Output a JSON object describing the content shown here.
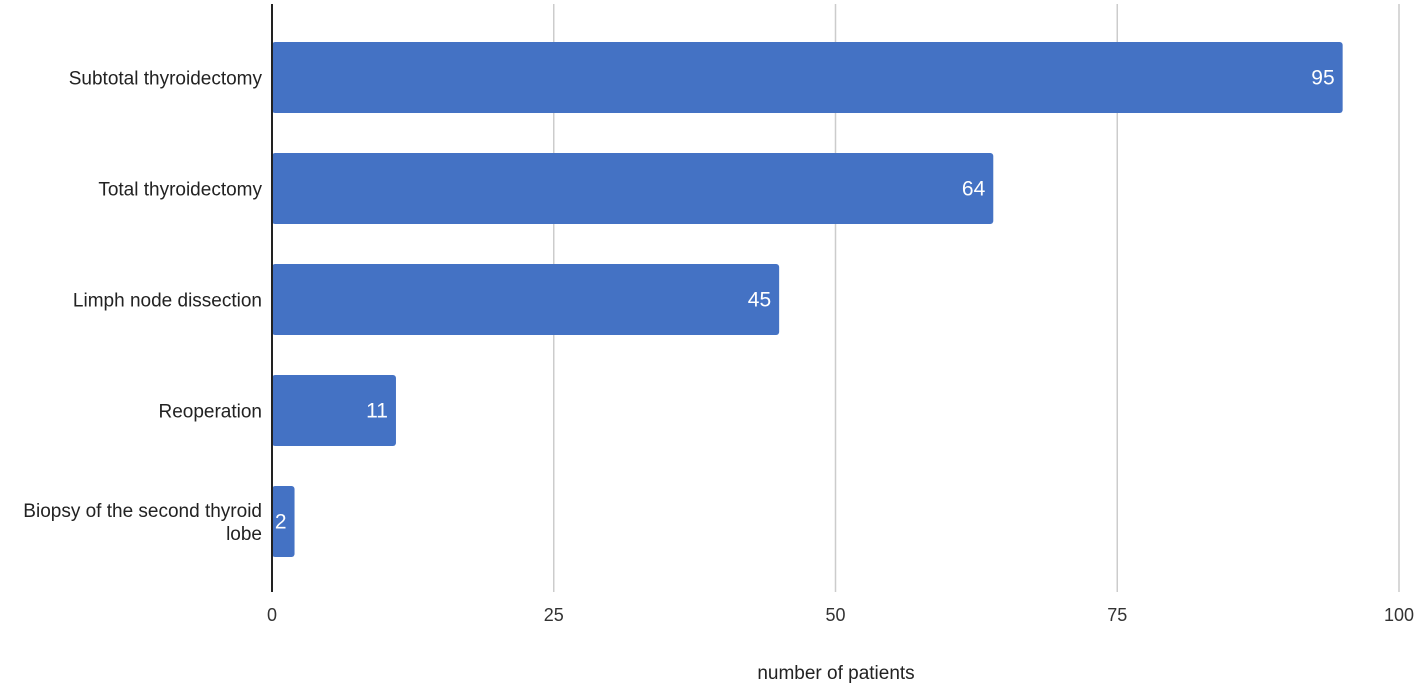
{
  "chart_data": {
    "type": "bar",
    "orientation": "horizontal",
    "categories": [
      "Subtotal thyroidectomy",
      "Total thyroidectomy",
      "Limph node dissection",
      "Reoperation",
      "Biopsy of the second thyroid lobe"
    ],
    "category_lines": [
      [
        "Subtotal thyroidectomy"
      ],
      [
        "Total thyroidectomy"
      ],
      [
        "Limph node dissection"
      ],
      [
        "Reoperation"
      ],
      [
        "Biopsy of the second thyroid",
        "lobe"
      ]
    ],
    "values": [
      95,
      64,
      45,
      11,
      2
    ],
    "data_labels": [
      "95",
      "64",
      "45",
      "11",
      "2"
    ],
    "title": "",
    "xlabel": "number of patients",
    "ylabel": "",
    "xlim": [
      0,
      100
    ],
    "x_ticks": [
      0,
      25,
      50,
      75,
      100
    ],
    "x_tick_labels": [
      "0",
      "25",
      "50",
      "75",
      "100"
    ],
    "grid": true,
    "legend": "none",
    "colors": {
      "bar": "#4472C4",
      "grid": "#CCCCCC",
      "axis": "#222222"
    }
  }
}
